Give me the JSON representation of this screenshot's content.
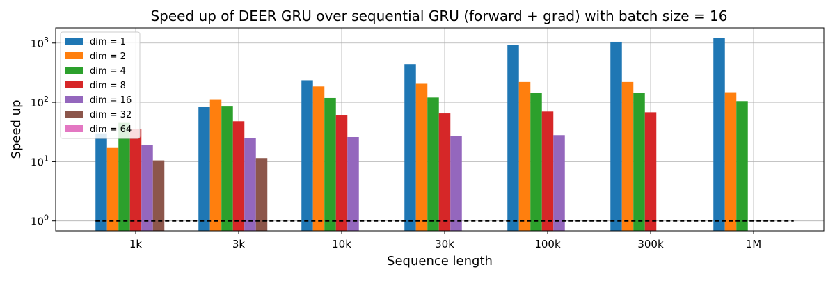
{
  "chart_data": {
    "type": "bar",
    "title": "Speed up of DEER GRU over sequential GRU (forward + grad) with batch size = 16",
    "xlabel": "Sequence length",
    "ylabel": "Speed up",
    "yscale": "log",
    "ylim": [
      0.68,
      1800
    ],
    "grid": true,
    "legend_position": "top-left",
    "categories": [
      "1k",
      "3k",
      "10k",
      "30k",
      "100k",
      "300k",
      "1M"
    ],
    "y_ticks": [
      {
        "value": 1,
        "base": "10",
        "exp": "0"
      },
      {
        "value": 10,
        "base": "10",
        "exp": "1"
      },
      {
        "value": 100,
        "base": "10",
        "exp": "2"
      },
      {
        "value": 1000,
        "base": "10",
        "exp": "3"
      }
    ],
    "reference_line": {
      "value": 1,
      "style": "dashed",
      "color": "#000000"
    },
    "series": [
      {
        "name": "dim = 1",
        "color": "#1f77b4",
        "values": [
          30,
          83,
          235,
          440,
          920,
          1050,
          1220
        ]
      },
      {
        "name": "dim = 2",
        "color": "#ff7f0e",
        "values": [
          17,
          110,
          185,
          205,
          220,
          220,
          148
        ]
      },
      {
        "name": "dim = 4",
        "color": "#2ca02c",
        "values": [
          45,
          85,
          118,
          120,
          145,
          145,
          105
        ]
      },
      {
        "name": "dim = 8",
        "color": "#d62728",
        "values": [
          35,
          48,
          60,
          65,
          70,
          68,
          null
        ]
      },
      {
        "name": "dim = 16",
        "color": "#9467bd",
        "values": [
          19,
          25,
          26,
          27,
          28,
          null,
          null
        ]
      },
      {
        "name": "dim = 32",
        "color": "#8c564b",
        "values": [
          10.5,
          11.5,
          null,
          null,
          null,
          null,
          null
        ]
      },
      {
        "name": "dim = 64",
        "color": "#e377c2",
        "values": [
          null,
          null,
          null,
          null,
          null,
          null,
          null
        ]
      }
    ]
  }
}
